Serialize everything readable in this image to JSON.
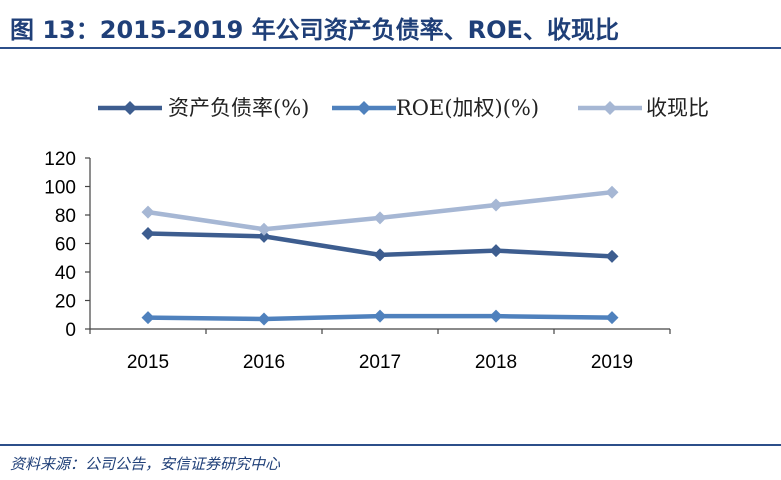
{
  "header": {
    "title": "图 13：2015-2019 年公司资产负债率、ROE、收现比"
  },
  "footer": {
    "source": "资料来源：公司公告，安信证券研究中心"
  },
  "colors": {
    "title": "#1f3f78",
    "rule": "#2c4f8a"
  },
  "chart_data": {
    "type": "line",
    "title": "",
    "xlabel": "",
    "ylabel": "",
    "categories": [
      "2015",
      "2016",
      "2017",
      "2018",
      "2019"
    ],
    "ylim": [
      0,
      120
    ],
    "yticks": [
      0,
      20,
      40,
      60,
      80,
      100,
      120
    ],
    "grid": false,
    "legend_position": "top",
    "marker": "diamond",
    "series": [
      {
        "name": "资产负债率(%)",
        "color": "#3d5d8f",
        "values": [
          67,
          65,
          52,
          55,
          51
        ]
      },
      {
        "name": "ROE(加权)(%)",
        "color": "#4f81bd",
        "values": [
          8,
          7,
          9,
          9,
          8
        ]
      },
      {
        "name": "收现比",
        "color": "#a6b7d4",
        "values": [
          82,
          70,
          78,
          87,
          96
        ]
      }
    ]
  }
}
